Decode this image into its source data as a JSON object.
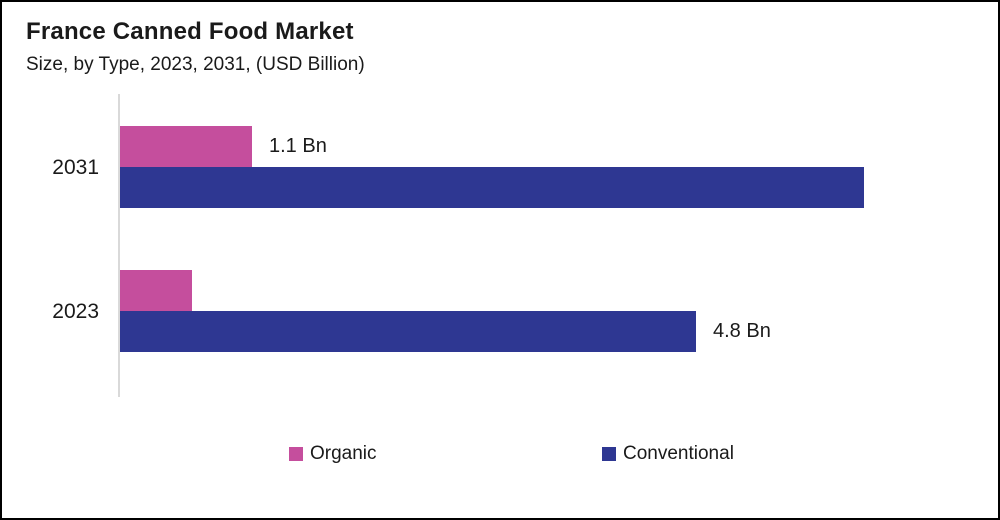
{
  "title": "France Canned Food Market",
  "subtitle": "Size, by Type, 2023, 2031, (USD Billion)",
  "colors": {
    "organic": "#C54E9D",
    "conventional": "#2E3792",
    "axis_line": "#D9D9D9",
    "text": "#1A1A1A"
  },
  "legend": [
    {
      "name": "Organic",
      "color": "#C54E9D"
    },
    {
      "name": "Conventional",
      "color": "#2E3792"
    }
  ],
  "chart_data": {
    "type": "bar",
    "orientation": "horizontal",
    "title": "France Canned Food Market",
    "subtitle": "Size, by Type, 2023, 2031, (USD Billion)",
    "categories": [
      "2031",
      "2023"
    ],
    "series": [
      {
        "name": "Organic",
        "color": "#C54E9D",
        "values": [
          1.1,
          0.6
        ]
      },
      {
        "name": "Conventional",
        "color": "#2E3792",
        "values": [
          6.2,
          4.8
        ]
      }
    ],
    "data_labels": [
      {
        "category": "2031",
        "series": "Organic",
        "text": "1.1 Bn"
      },
      {
        "category": "2023",
        "series": "Conventional",
        "text": "4.8 Bn"
      }
    ],
    "xlabel": "",
    "ylabel": "",
    "xlim": [
      0,
      7.1
    ],
    "grid": false,
    "legend_position": "bottom"
  }
}
